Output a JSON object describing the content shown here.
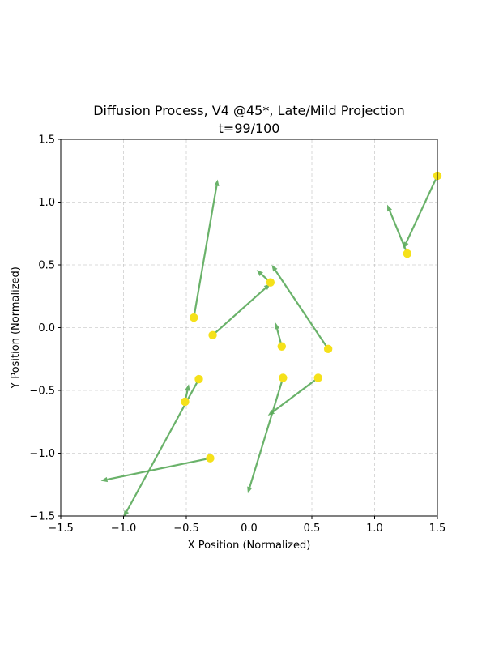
{
  "chart_data": {
    "type": "scatter",
    "title": "Diffusion Process, V4 @45*, Late/Mild Projection",
    "subtitle": "t=99/100",
    "xlabel": "X Position (Normalized)",
    "ylabel": "Y Position (Normalized)",
    "xlim": [
      -1.5,
      1.5
    ],
    "ylim": [
      -1.5,
      1.5
    ],
    "xticks": [
      -1.5,
      -1.0,
      -0.5,
      0.0,
      0.5,
      1.0,
      1.5
    ],
    "yticks": [
      -1.5,
      -1.0,
      -0.5,
      0.0,
      0.5,
      1.0,
      1.5
    ],
    "xtick_labels": [
      "−1.5",
      "−1.0",
      "−0.5",
      "0.0",
      "0.5",
      "1.0",
      "1.5"
    ],
    "ytick_labels": [
      "−1.5",
      "−1.0",
      "−0.5",
      "0.0",
      "0.5",
      "1.0",
      "1.5"
    ],
    "grid": true,
    "point_color": "#f5e11a",
    "arrow_color": "#5aaa5a",
    "points": [
      {
        "x": -0.44,
        "y": 0.08,
        "dx": 0.19,
        "dy": 1.1
      },
      {
        "x": -0.29,
        "y": -0.06,
        "dx": 0.46,
        "dy": 0.41
      },
      {
        "x": 0.17,
        "y": 0.36,
        "dx": -0.11,
        "dy": 0.1
      },
      {
        "x": 0.63,
        "y": -0.17,
        "dx": -0.45,
        "dy": 0.67
      },
      {
        "x": 0.26,
        "y": -0.15,
        "dx": -0.05,
        "dy": 0.19
      },
      {
        "x": 1.26,
        "y": 0.59,
        "dx": -0.16,
        "dy": 0.39
      },
      {
        "x": 1.5,
        "y": 1.21,
        "dx": -0.27,
        "dy": -0.58
      },
      {
        "x": -0.4,
        "y": -0.41,
        "dx": -0.6,
        "dy": -1.1
      },
      {
        "x": -0.51,
        "y": -0.59,
        "dx": 0.03,
        "dy": 0.14
      },
      {
        "x": 0.27,
        "y": -0.4,
        "dx": -0.28,
        "dy": -0.92
      },
      {
        "x": 0.55,
        "y": -0.4,
        "dx": -0.4,
        "dy": -0.3
      },
      {
        "x": -0.31,
        "y": -1.04,
        "dx": -0.87,
        "dy": -0.18
      }
    ]
  }
}
